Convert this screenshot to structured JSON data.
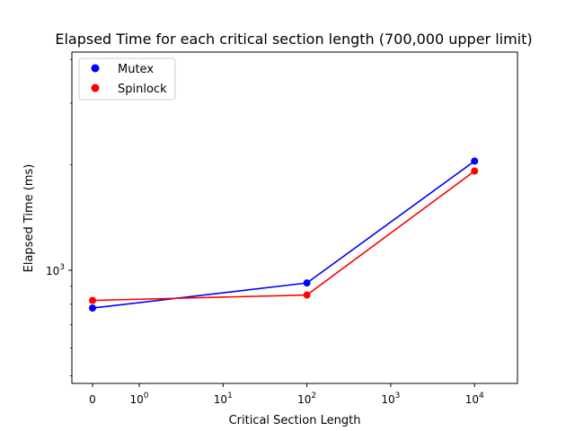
{
  "chart_data": {
    "type": "line",
    "title": "Elapsed Time for each critical section length (700,000 upper limit)",
    "xlabel": "Critical Section Length",
    "ylabel": "Elapsed Time (ms)",
    "x_scale": "symlog",
    "y_scale": "log",
    "x_ticks": [
      {
        "value": 0,
        "base": "0",
        "exp": ""
      },
      {
        "value": 1,
        "base": "10",
        "exp": "0"
      },
      {
        "value": 10,
        "base": "10",
        "exp": "1"
      },
      {
        "value": 100,
        "base": "10",
        "exp": "2"
      },
      {
        "value": 1000,
        "base": "10",
        "exp": "3"
      },
      {
        "value": 10000,
        "base": "10",
        "exp": "4"
      }
    ],
    "y_ticks": [
      {
        "value": 1000,
        "base": "10",
        "exp": "3"
      }
    ],
    "legend_position": "top-left",
    "grid": false,
    "series": [
      {
        "name": "Mutex",
        "color": "#0000ff",
        "x": [
          0,
          100,
          10000
        ],
        "y": [
          780,
          920,
          2050
        ]
      },
      {
        "name": "Spinlock",
        "color": "#ff0000",
        "x": [
          0,
          100,
          10000
        ],
        "y": [
          820,
          850,
          1920
        ]
      }
    ]
  }
}
